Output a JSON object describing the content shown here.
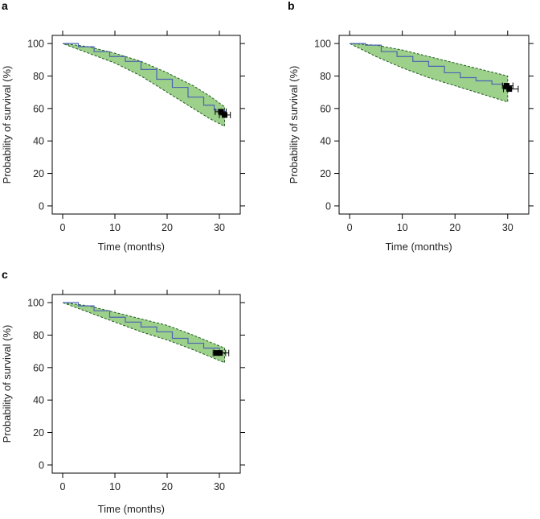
{
  "chart_data": [
    {
      "panel": "a",
      "type": "line",
      "title": "",
      "xlabel": "Time (months)",
      "ylabel": "Probability of survival (%)",
      "xlim": [
        -2,
        34
      ],
      "ylim": [
        -5,
        105
      ],
      "xticks": [
        0,
        10,
        20,
        30
      ],
      "yticks": [
        0,
        20,
        40,
        60,
        80,
        100
      ],
      "series": [
        {
          "name": "survival",
          "x": [
            0,
            3,
            6,
            9,
            12,
            15,
            18,
            21,
            24,
            27,
            29,
            31
          ],
          "values": [
            100,
            98,
            95,
            92,
            89,
            84,
            78,
            73,
            67,
            62,
            59,
            56
          ]
        },
        {
          "name": "upper_ci",
          "x": [
            0,
            5,
            10,
            15,
            20,
            25,
            28,
            31
          ],
          "values": [
            100,
            98,
            94,
            89,
            82,
            74,
            68,
            61
          ]
        },
        {
          "name": "lower_ci",
          "x": [
            0,
            5,
            10,
            15,
            20,
            25,
            28,
            31
          ],
          "values": [
            100,
            94,
            88,
            80,
            70,
            60,
            54,
            49
          ]
        }
      ],
      "estimates": [
        {
          "label": "marker-1",
          "x": 30.3,
          "y": 58,
          "xerr": [
            29.2,
            31.3
          ]
        },
        {
          "label": "marker-2",
          "x": 31.0,
          "y": 56,
          "xerr": [
            30.0,
            32.1
          ]
        }
      ]
    },
    {
      "panel": "b",
      "type": "line",
      "title": "",
      "xlabel": "Time (months)",
      "ylabel": "Probability of survival (%)",
      "xlim": [
        -2,
        34
      ],
      "ylim": [
        -5,
        105
      ],
      "xticks": [
        0,
        10,
        20,
        30
      ],
      "yticks": [
        0,
        20,
        40,
        60,
        80,
        100
      ],
      "series": [
        {
          "name": "survival",
          "x": [
            0,
            3,
            6,
            9,
            12,
            15,
            18,
            21,
            24,
            27,
            30
          ],
          "values": [
            100,
            99,
            95,
            92,
            89,
            86,
            82,
            79,
            77,
            75,
            73
          ]
        },
        {
          "name": "upper_ci",
          "x": [
            0,
            5,
            10,
            15,
            20,
            25,
            30
          ],
          "values": [
            100,
            99,
            96,
            92,
            88,
            84,
            80
          ]
        },
        {
          "name": "lower_ci",
          "x": [
            0,
            5,
            10,
            15,
            20,
            25,
            30
          ],
          "values": [
            100,
            92,
            85,
            79,
            74,
            69,
            64
          ]
        }
      ],
      "estimates": [
        {
          "label": "marker-1",
          "x": 29.8,
          "y": 74,
          "xerr": [
            29.0,
            31.0
          ]
        },
        {
          "label": "marker-2",
          "x": 30.3,
          "y": 72,
          "xerr": [
            29.2,
            32.0
          ]
        }
      ]
    },
    {
      "panel": "c",
      "type": "line",
      "title": "",
      "xlabel": "Time (months)",
      "ylabel": "Probability of survival (%)",
      "xlim": [
        -2,
        34
      ],
      "ylim": [
        -5,
        105
      ],
      "xticks": [
        0,
        10,
        20,
        30
      ],
      "yticks": [
        0,
        20,
        40,
        60,
        80,
        100
      ],
      "series": [
        {
          "name": "survival",
          "x": [
            0,
            3,
            6,
            9,
            12,
            15,
            18,
            21,
            24,
            27,
            30
          ],
          "values": [
            100,
            98,
            95,
            91,
            88,
            85,
            82,
            78,
            75,
            72,
            69
          ]
        },
        {
          "name": "upper_ci",
          "x": [
            0,
            5,
            10,
            15,
            20,
            25,
            31
          ],
          "values": [
            100,
            98,
            94,
            90,
            86,
            80,
            72
          ]
        },
        {
          "name": "lower_ci",
          "x": [
            0,
            5,
            10,
            15,
            20,
            25,
            31
          ],
          "values": [
            100,
            94,
            88,
            82,
            77,
            71,
            63
          ]
        }
      ],
      "estimates": [
        {
          "label": "marker-1",
          "x": 29.6,
          "y": 69,
          "xerr": [
            28.8,
            31.2
          ]
        },
        {
          "label": "marker-2",
          "x": 30.1,
          "y": 69,
          "xerr": [
            29.0,
            31.8
          ]
        }
      ]
    }
  ],
  "colors": {
    "band_fill": "#9dd08a",
    "band_edge": "#1d5a1d",
    "curve": "#4b63b4",
    "marker": "#000000"
  }
}
